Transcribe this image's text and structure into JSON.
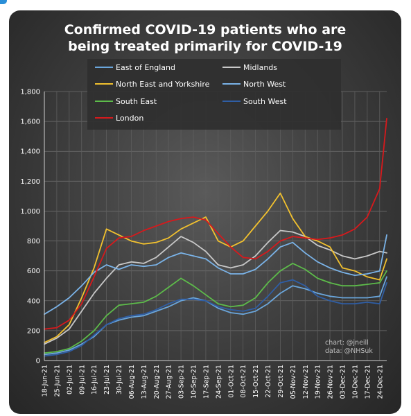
{
  "chart_data": {
    "type": "line",
    "title_lines": [
      "Confirmed COVID-19 patients who are",
      "being treated primarily for COVID-19"
    ],
    "xlabel": "",
    "ylabel": "",
    "ylim": [
      0,
      1800
    ],
    "yticks": [
      0,
      200,
      400,
      600,
      800,
      1000,
      1200,
      1400,
      1600,
      1800
    ],
    "ytick_labels": [
      "0",
      "200",
      "400",
      "600",
      "800",
      "1,000",
      "1,200",
      "1,400",
      "1,600",
      "1,800"
    ],
    "xlim": [
      "2021-06-18",
      "2021-12-28"
    ],
    "xticks": [
      "2021-06-18",
      "2021-06-25",
      "2021-07-02",
      "2021-07-09",
      "2021-07-16",
      "2021-07-23",
      "2021-07-30",
      "2021-08-06",
      "2021-08-13",
      "2021-08-20",
      "2021-08-27",
      "2021-09-03",
      "2021-09-10",
      "2021-09-17",
      "2021-09-24",
      "2021-10-01",
      "2021-10-08",
      "2021-10-15",
      "2021-10-22",
      "2021-10-29",
      "2021-11-05",
      "2021-11-12",
      "2021-11-19",
      "2021-11-26",
      "2021-12-03",
      "2021-12-10",
      "2021-12-17",
      "2021-12-24"
    ],
    "xtick_labels": [
      "18-Jun-21",
      "25-Jun-21",
      "02-Jul-21",
      "09-Jul-21",
      "16-Jul-21",
      "23-Jul-21",
      "30-Jul-21",
      "06-Aug-21",
      "13-Aug-21",
      "20-Aug-21",
      "27-Aug-21",
      "03-Sep-21",
      "10-Sep-21",
      "17-Sep-21",
      "24-Sep-21",
      "01-Oct-21",
      "08-Oct-21",
      "15-Oct-21",
      "22-Oct-21",
      "29-Oct-21",
      "05-Nov-21",
      "12-Nov-21",
      "19-Nov-21",
      "26-Nov-21",
      "03-Dec-21",
      "10-Dec-21",
      "17-Dec-21",
      "24-Dec-21"
    ],
    "grid": true,
    "legend_position": "top",
    "annotation": [
      "chart: @jneill",
      "data: @NHSuk"
    ],
    "series": [
      {
        "name": "East of England",
        "color": "#6aa6dc",
        "x": [
          "2021-06-18",
          "2021-06-25",
          "2021-07-02",
          "2021-07-09",
          "2021-07-16",
          "2021-07-23",
          "2021-07-30",
          "2021-08-06",
          "2021-08-13",
          "2021-08-20",
          "2021-08-27",
          "2021-09-03",
          "2021-09-10",
          "2021-09-17",
          "2021-09-24",
          "2021-10-01",
          "2021-10-08",
          "2021-10-15",
          "2021-10-22",
          "2021-10-29",
          "2021-11-05",
          "2021-11-12",
          "2021-11-19",
          "2021-11-26",
          "2021-12-03",
          "2021-12-10",
          "2021-12-17",
          "2021-12-24",
          "2021-12-28"
        ],
        "y": [
          40,
          50,
          70,
          110,
          160,
          240,
          270,
          290,
          300,
          330,
          360,
          400,
          420,
          400,
          350,
          320,
          310,
          330,
          380,
          450,
          500,
          480,
          450,
          430,
          420,
          420,
          420,
          430,
          560
        ]
      },
      {
        "name": "Midlands",
        "color": "#c8c8c8",
        "x": [
          "2021-06-18",
          "2021-06-25",
          "2021-07-02",
          "2021-07-09",
          "2021-07-16",
          "2021-07-23",
          "2021-07-30",
          "2021-08-06",
          "2021-08-13",
          "2021-08-20",
          "2021-08-27",
          "2021-09-03",
          "2021-09-10",
          "2021-09-17",
          "2021-09-24",
          "2021-10-01",
          "2021-10-08",
          "2021-10-15",
          "2021-10-22",
          "2021-10-29",
          "2021-11-05",
          "2021-11-12",
          "2021-11-19",
          "2021-11-26",
          "2021-12-03",
          "2021-12-10",
          "2021-12-17",
          "2021-12-24",
          "2021-12-28"
        ],
        "y": [
          110,
          150,
          210,
          330,
          450,
          550,
          640,
          660,
          650,
          690,
          760,
          830,
          790,
          730,
          640,
          620,
          640,
          700,
          790,
          870,
          860,
          830,
          770,
          740,
          700,
          680,
          700,
          730,
          720
        ]
      },
      {
        "name": "North East and Yorkshire",
        "color": "#f2c12e",
        "x": [
          "2021-06-18",
          "2021-06-25",
          "2021-07-02",
          "2021-07-09",
          "2021-07-16",
          "2021-07-23",
          "2021-07-30",
          "2021-08-06",
          "2021-08-13",
          "2021-08-20",
          "2021-08-27",
          "2021-09-03",
          "2021-09-10",
          "2021-09-17",
          "2021-09-24",
          "2021-10-01",
          "2021-10-08",
          "2021-10-15",
          "2021-10-22",
          "2021-10-29",
          "2021-11-05",
          "2021-11-12",
          "2021-11-19",
          "2021-11-26",
          "2021-12-03",
          "2021-12-10",
          "2021-12-17",
          "2021-12-24",
          "2021-12-28"
        ],
        "y": [
          120,
          160,
          240,
          420,
          620,
          880,
          840,
          800,
          780,
          790,
          820,
          880,
          920,
          960,
          800,
          760,
          800,
          900,
          1000,
          1120,
          950,
          830,
          800,
          760,
          620,
          600,
          560,
          540,
          680
        ]
      },
      {
        "name": "North West",
        "color": "#7ab3e8",
        "x": [
          "2021-06-18",
          "2021-06-25",
          "2021-07-02",
          "2021-07-09",
          "2021-07-16",
          "2021-07-23",
          "2021-07-30",
          "2021-08-06",
          "2021-08-13",
          "2021-08-20",
          "2021-08-27",
          "2021-09-03",
          "2021-09-10",
          "2021-09-17",
          "2021-09-24",
          "2021-10-01",
          "2021-10-08",
          "2021-10-15",
          "2021-10-22",
          "2021-10-29",
          "2021-11-05",
          "2021-11-12",
          "2021-11-19",
          "2021-11-26",
          "2021-12-03",
          "2021-12-10",
          "2021-12-17",
          "2021-12-24",
          "2021-12-28"
        ],
        "y": [
          310,
          360,
          420,
          500,
          590,
          640,
          610,
          640,
          630,
          640,
          690,
          720,
          700,
          680,
          620,
          580,
          580,
          610,
          680,
          760,
          790,
          720,
          660,
          620,
          590,
          570,
          580,
          600,
          840
        ]
      },
      {
        "name": "South East",
        "color": "#5dbb4a",
        "x": [
          "2021-06-18",
          "2021-06-25",
          "2021-07-02",
          "2021-07-09",
          "2021-07-16",
          "2021-07-23",
          "2021-07-30",
          "2021-08-06",
          "2021-08-13",
          "2021-08-20",
          "2021-08-27",
          "2021-09-03",
          "2021-09-10",
          "2021-09-17",
          "2021-09-24",
          "2021-10-01",
          "2021-10-08",
          "2021-10-15",
          "2021-10-22",
          "2021-10-29",
          "2021-11-05",
          "2021-11-12",
          "2021-11-19",
          "2021-11-26",
          "2021-12-03",
          "2021-12-10",
          "2021-12-17",
          "2021-12-24",
          "2021-12-28"
        ],
        "y": [
          50,
          60,
          80,
          130,
          200,
          300,
          370,
          380,
          390,
          430,
          490,
          550,
          500,
          440,
          380,
          360,
          370,
          420,
          520,
          600,
          650,
          610,
          550,
          520,
          500,
          500,
          510,
          520,
          600
        ]
      },
      {
        "name": "South West",
        "color": "#2f5ea5",
        "x": [
          "2021-06-18",
          "2021-06-25",
          "2021-07-02",
          "2021-07-09",
          "2021-07-16",
          "2021-07-23",
          "2021-07-30",
          "2021-08-06",
          "2021-08-13",
          "2021-08-20",
          "2021-08-27",
          "2021-09-03",
          "2021-09-10",
          "2021-09-17",
          "2021-09-24",
          "2021-10-01",
          "2021-10-08",
          "2021-10-15",
          "2021-10-22",
          "2021-10-29",
          "2021-11-05",
          "2021-11-12",
          "2021-11-19",
          "2021-11-26",
          "2021-12-03",
          "2021-12-10",
          "2021-12-17",
          "2021-12-24",
          "2021-12-28"
        ],
        "y": [
          30,
          40,
          60,
          100,
          170,
          240,
          280,
          300,
          310,
          340,
          380,
          410,
          410,
          400,
          360,
          340,
          330,
          350,
          430,
          520,
          540,
          500,
          430,
          400,
          380,
          380,
          390,
          380,
          520
        ]
      },
      {
        "name": "London",
        "color": "#d7191c",
        "x": [
          "2021-06-18",
          "2021-06-25",
          "2021-07-02",
          "2021-07-09",
          "2021-07-16",
          "2021-07-23",
          "2021-07-30",
          "2021-08-06",
          "2021-08-13",
          "2021-08-20",
          "2021-08-27",
          "2021-09-03",
          "2021-09-10",
          "2021-09-17",
          "2021-09-24",
          "2021-10-01",
          "2021-10-08",
          "2021-10-15",
          "2021-10-22",
          "2021-10-29",
          "2021-11-05",
          "2021-11-12",
          "2021-11-19",
          "2021-11-26",
          "2021-12-03",
          "2021-12-10",
          "2021-12-17",
          "2021-12-24",
          "2021-12-28"
        ],
        "y": [
          210,
          220,
          270,
          380,
          560,
          750,
          820,
          830,
          870,
          900,
          930,
          950,
          960,
          940,
          850,
          760,
          690,
          680,
          730,
          800,
          830,
          820,
          810,
          820,
          840,
          880,
          960,
          1150,
          1620
        ]
      }
    ]
  }
}
